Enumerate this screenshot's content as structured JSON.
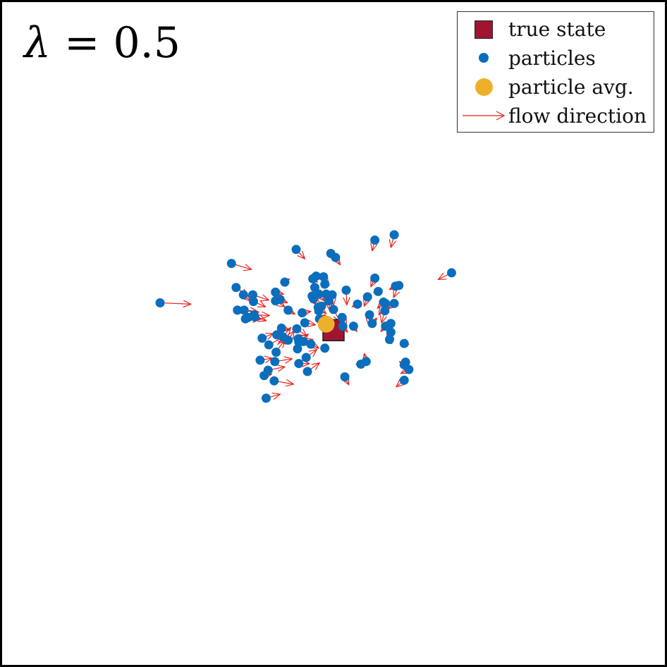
{
  "title": {
    "lambda_symbol": "λ",
    "equals_text": "= 0.5"
  },
  "legend": {
    "true_state_label": "true state",
    "particles_label": "particles",
    "avg_label": "particle avg.",
    "flow_label": "flow direction"
  },
  "colors": {
    "true_state": "#a01432",
    "particle": "#0a6ebd",
    "avg": "#eeb02a",
    "flow": "#e8221e"
  },
  "chart_data": {
    "type": "scatter",
    "xlim": [
      0,
      1
    ],
    "ylim": [
      0,
      1
    ],
    "true_state": [
      0.5,
      0.495
    ],
    "particle_avg": [
      0.489,
      0.486
    ],
    "particles": [
      [
        0.24,
        0.454,
        0.286,
        0.456
      ],
      [
        0.347,
        0.395,
        0.377,
        0.404
      ],
      [
        0.354,
        0.431,
        0.372,
        0.444
      ],
      [
        0.356,
        0.465,
        0.388,
        0.468
      ],
      [
        0.365,
        0.442,
        0.375,
        0.451
      ],
      [
        0.368,
        0.478,
        0.39,
        0.479
      ],
      [
        0.366,
        0.465,
        0.386,
        0.467
      ],
      [
        0.372,
        0.476,
        0.392,
        0.478
      ],
      [
        0.381,
        0.472,
        0.404,
        0.473
      ],
      [
        0.38,
        0.452,
        0.398,
        0.46
      ],
      [
        0.379,
        0.442,
        0.403,
        0.45
      ],
      [
        0.382,
        0.475,
        0.399,
        0.481
      ],
      [
        0.39,
        0.54,
        0.408,
        0.537
      ],
      [
        0.393,
        0.507,
        0.41,
        0.5
      ],
      [
        0.399,
        0.597,
        0.42,
        0.591
      ],
      [
        0.396,
        0.563,
        0.407,
        0.561
      ],
      [
        0.402,
        0.555,
        0.427,
        0.55
      ],
      [
        0.403,
        0.517,
        0.425,
        0.505
      ],
      [
        0.412,
        0.542,
        0.438,
        0.538
      ],
      [
        0.411,
        0.571,
        0.44,
        0.576
      ],
      [
        0.413,
        0.451,
        0.427,
        0.46
      ],
      [
        0.413,
        0.438,
        0.425,
        0.441
      ],
      [
        0.415,
        0.502,
        0.428,
        0.516
      ],
      [
        0.42,
        0.449,
        0.431,
        0.454
      ],
      [
        0.422,
        0.492,
        0.434,
        0.495
      ],
      [
        0.414,
        0.528,
        0.426,
        0.51
      ],
      [
        0.427,
        0.423,
        0.434,
        0.418
      ],
      [
        0.424,
        0.505,
        0.436,
        0.491
      ],
      [
        0.432,
        0.51,
        0.441,
        0.496
      ],
      [
        0.432,
        0.465,
        0.442,
        0.471
      ],
      [
        0.444,
        0.374,
        0.457,
        0.388
      ],
      [
        0.446,
        0.523,
        0.451,
        0.511
      ],
      [
        0.445,
        0.493,
        0.46,
        0.504
      ],
      [
        0.447,
        0.508,
        0.456,
        0.512
      ],
      [
        0.448,
        0.545,
        0.464,
        0.545
      ],
      [
        0.448,
        0.513,
        0.462,
        0.501
      ],
      [
        0.453,
        0.469,
        0.466,
        0.467
      ],
      [
        0.455,
        0.512,
        0.469,
        0.509
      ],
      [
        0.457,
        0.484,
        0.473,
        0.487
      ],
      [
        0.459,
        0.536,
        0.475,
        0.524
      ],
      [
        0.461,
        0.557,
        0.479,
        0.544
      ],
      [
        0.466,
        0.516,
        0.478,
        0.522
      ],
      [
        0.468,
        0.444,
        0.473,
        0.456
      ],
      [
        0.469,
        0.418,
        0.476,
        0.423
      ],
      [
        0.47,
        0.448,
        0.48,
        0.459
      ],
      [
        0.472,
        0.431,
        0.477,
        0.428
      ],
      [
        0.474,
        0.414,
        0.481,
        0.418
      ],
      [
        0.477,
        0.461,
        0.489,
        0.47
      ],
      [
        0.478,
        0.466,
        0.484,
        0.467
      ],
      [
        0.479,
        0.478,
        0.488,
        0.472
      ],
      [
        0.478,
        0.441,
        0.486,
        0.451
      ],
      [
        0.482,
        0.459,
        0.491,
        0.452
      ],
      [
        0.487,
        0.426,
        0.494,
        0.427
      ],
      [
        0.485,
        0.415,
        0.493,
        0.425
      ],
      [
        0.489,
        0.441,
        0.495,
        0.456
      ],
      [
        0.493,
        0.451,
        0.494,
        0.465
      ],
      [
        0.498,
        0.442,
        0.5,
        0.458
      ],
      [
        0.503,
        0.386,
        0.51,
        0.397
      ],
      [
        0.5,
        0.464,
        0.51,
        0.482
      ],
      [
        0.487,
        0.522,
        0.49,
        0.516
      ],
      [
        0.519,
        0.435,
        0.52,
        0.457
      ],
      [
        0.513,
        0.476,
        0.519,
        0.49
      ],
      [
        0.514,
        0.489,
        0.521,
        0.498
      ],
      [
        0.517,
        0.565,
        0.523,
        0.577
      ],
      [
        0.53,
        0.489,
        0.535,
        0.497
      ],
      [
        0.536,
        0.456,
        0.528,
        0.46
      ],
      [
        0.541,
        0.546,
        0.534,
        0.546
      ],
      [
        0.549,
        0.542,
        0.546,
        0.53
      ],
      [
        0.551,
        0.445,
        0.546,
        0.459
      ],
      [
        0.554,
        0.472,
        0.553,
        0.488
      ],
      [
        0.558,
        0.485,
        0.565,
        0.477
      ],
      [
        0.562,
        0.417,
        0.556,
        0.43
      ],
      [
        0.562,
        0.36,
        0.558,
        0.376
      ],
      [
        0.567,
        0.437,
        0.56,
        0.439
      ],
      [
        0.575,
        0.453,
        0.566,
        0.462
      ],
      [
        0.577,
        0.466,
        0.572,
        0.484
      ],
      [
        0.578,
        0.489,
        0.571,
        0.497
      ],
      [
        0.578,
        0.455,
        0.568,
        0.472
      ],
      [
        0.584,
        0.509,
        0.579,
        0.507
      ],
      [
        0.586,
        0.485,
        0.581,
        0.499
      ],
      [
        0.586,
        0.498,
        0.58,
        0.511
      ],
      [
        0.591,
        0.455,
        0.582,
        0.463
      ],
      [
        0.593,
        0.429,
        0.584,
        0.434
      ],
      [
        0.598,
        0.428,
        0.59,
        0.446
      ],
      [
        0.606,
        0.515,
        0.601,
        0.518
      ],
      [
        0.606,
        0.547,
        0.599,
        0.542
      ],
      [
        0.608,
        0.543,
        0.604,
        0.552
      ],
      [
        0.613,
        0.554,
        0.601,
        0.56
      ],
      [
        0.606,
        0.57,
        0.594,
        0.58
      ],
      [
        0.677,
        0.409,
        0.657,
        0.419
      ],
      [
        0.591,
        0.352,
        0.586,
        0.371
      ],
      [
        0.496,
        0.38,
        0.506,
        0.385
      ]
    ]
  }
}
